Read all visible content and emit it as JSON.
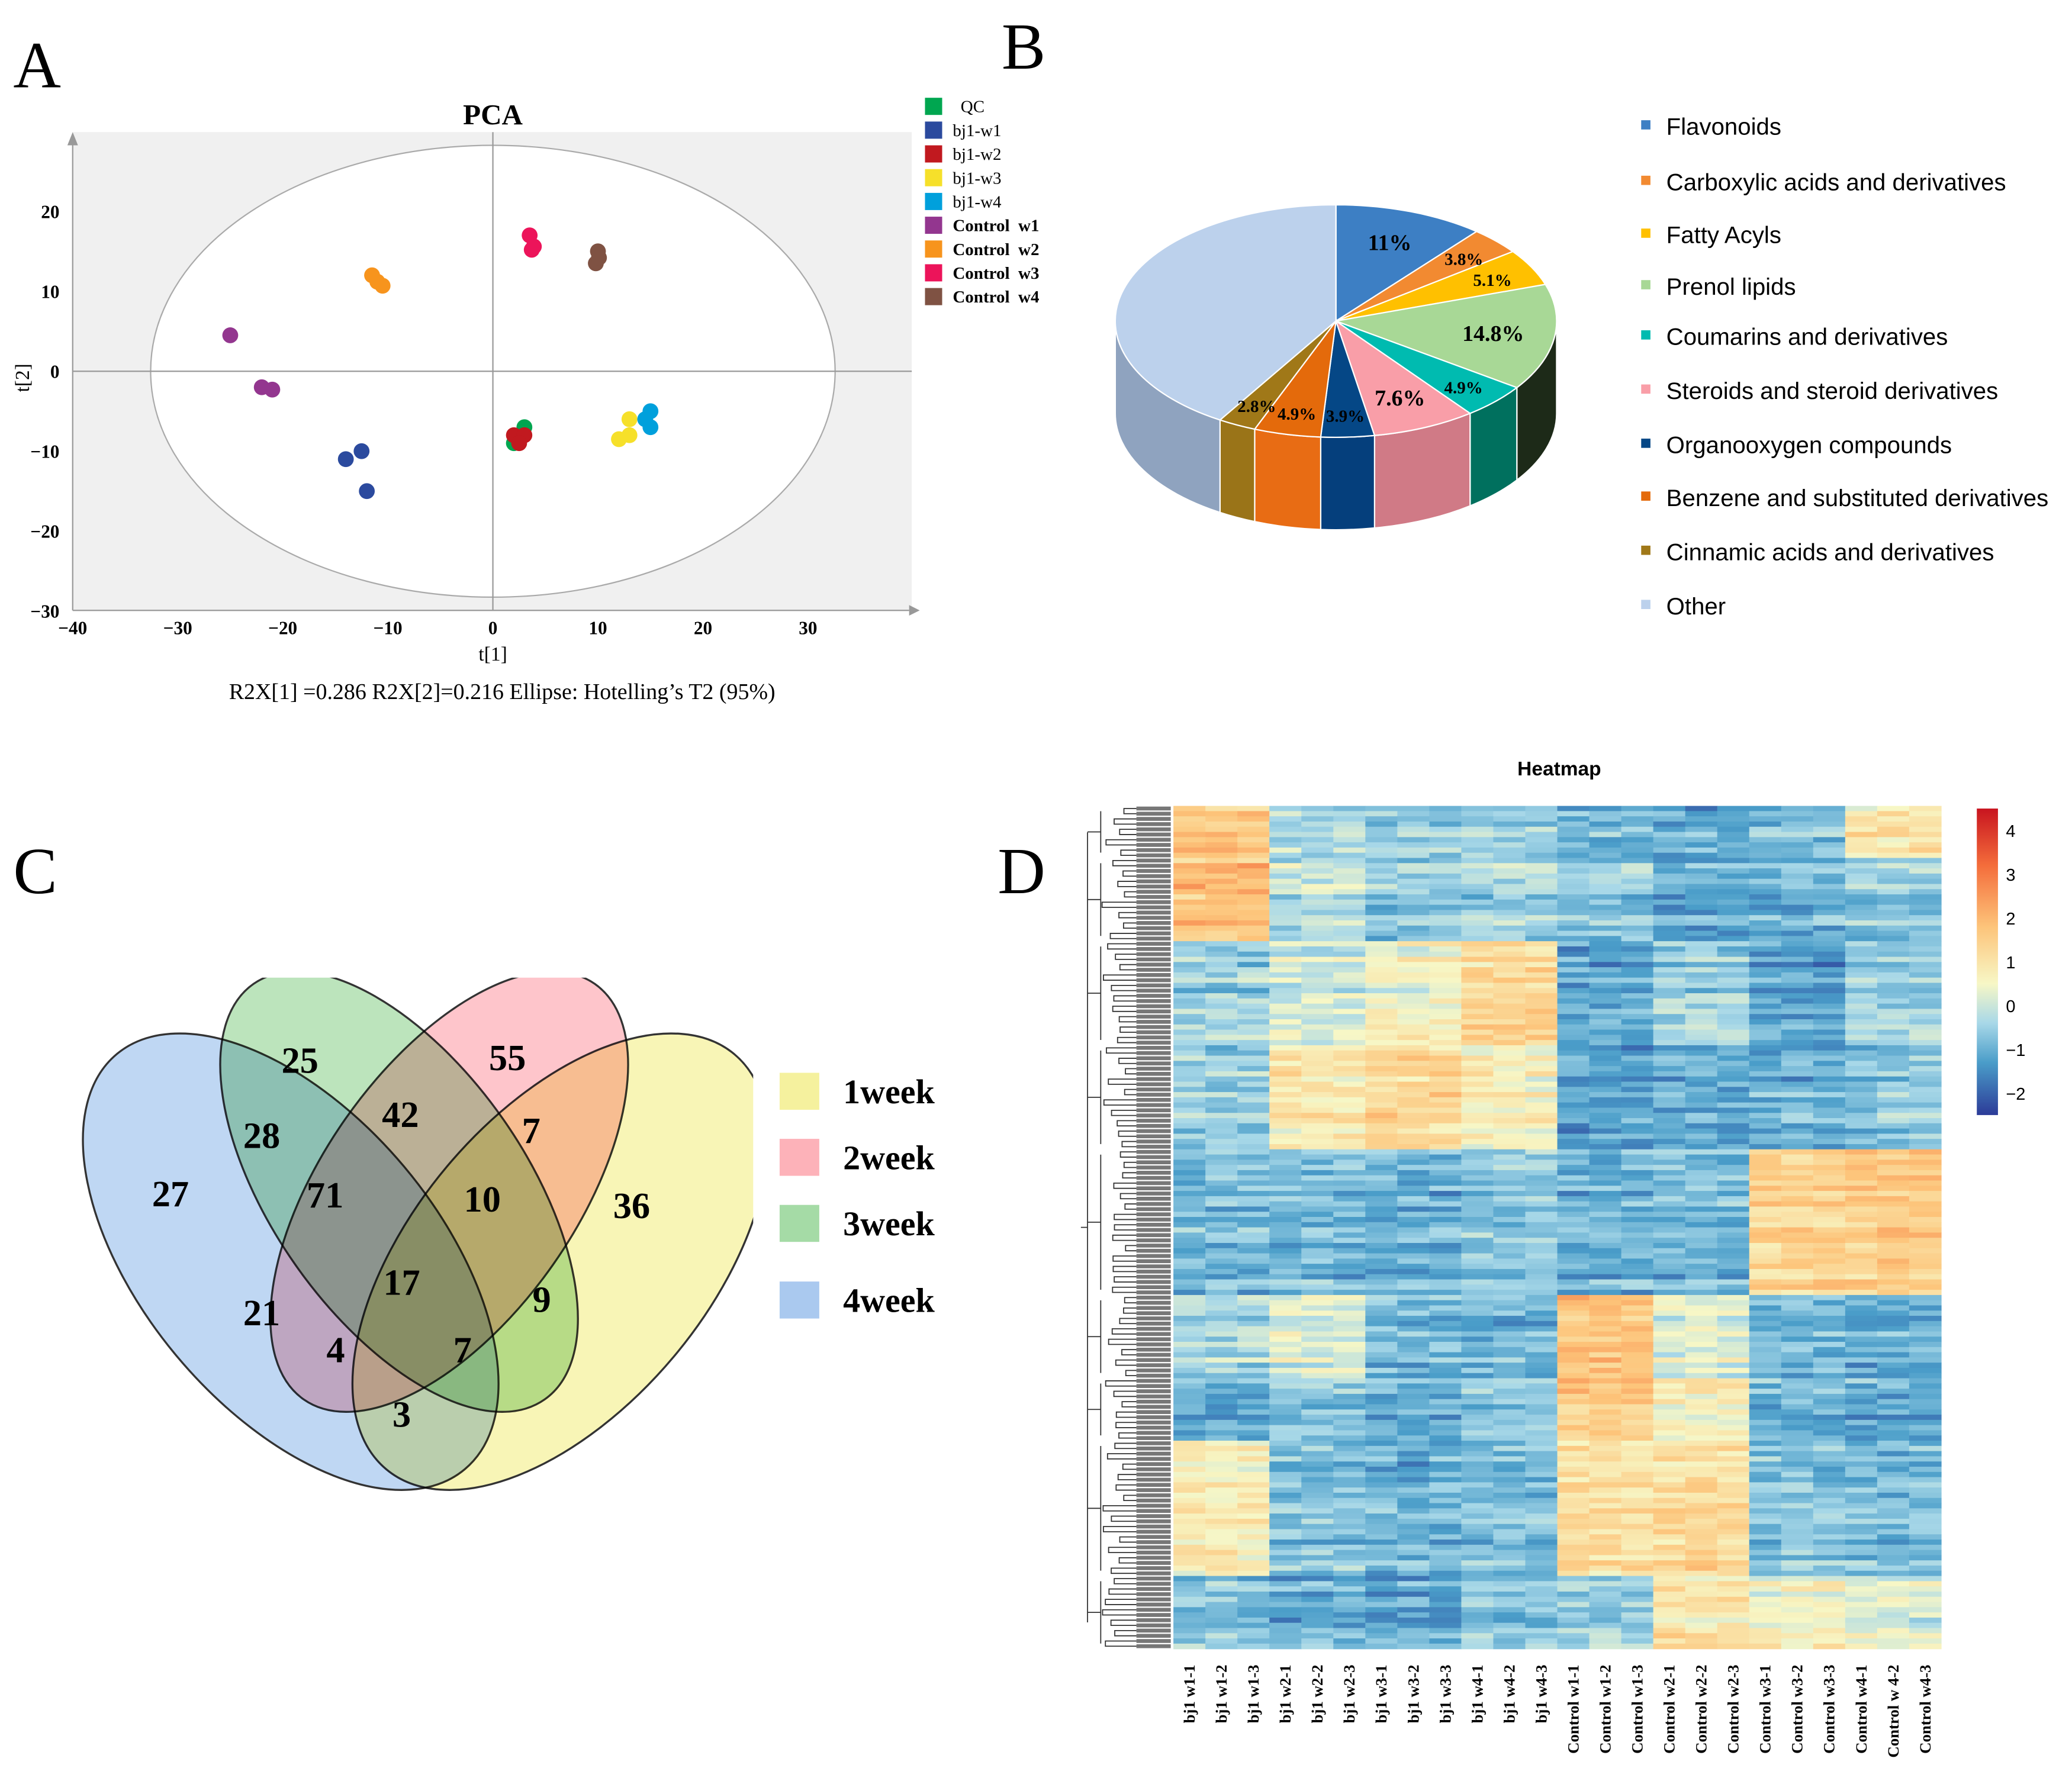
{
  "panels": {
    "a": "A",
    "b": "B",
    "c": "C",
    "d": "D"
  },
  "chart_data": [
    {
      "type": "scatter",
      "title": "PCA",
      "xlabel": "t[1]",
      "ylabel": "t[2]",
      "xlim": [
        -40,
        40
      ],
      "ylim": [
        -30,
        30
      ],
      "xticks": [
        -40,
        -30,
        -20,
        -10,
        0,
        10,
        20,
        30
      ],
      "yticks": [
        20,
        10,
        0,
        -10,
        -20,
        -30
      ],
      "footnote": "R2X[1] =0.286  R2X[2]=0.216 Ellipse: Hotelling’s T2 (95%)",
      "legend_position": "right",
      "series": [
        {
          "name": "QC",
          "color": "#00a650",
          "points": [
            [
              3,
              -7
            ],
            [
              2,
              -9
            ],
            [
              2.5,
              -8.2
            ]
          ]
        },
        {
          "name": "bj1-w1",
          "color": "#2b4a9e",
          "points": [
            [
              -14,
              -11
            ],
            [
              -12.5,
              -10
            ],
            [
              -12,
              -15
            ]
          ]
        },
        {
          "name": "bj1-w2",
          "color": "#c1191f",
          "points": [
            [
              2,
              -8
            ],
            [
              3,
              -8
            ],
            [
              2.5,
              -9
            ]
          ]
        },
        {
          "name": "bj1-w3",
          "color": "#f6e02a",
          "points": [
            [
              13,
              -6
            ],
            [
              12,
              -8.5
            ],
            [
              13,
              -8
            ]
          ]
        },
        {
          "name": "bj1-w4",
          "color": "#00a0dc",
          "points": [
            [
              15,
              -5
            ],
            [
              15,
              -7
            ],
            [
              14.5,
              -6
            ]
          ]
        },
        {
          "name": "Control  w1",
          "color": "#93368f",
          "points": [
            [
              -25,
              4.5
            ],
            [
              -22,
              -2
            ],
            [
              -21,
              -2.3
            ]
          ]
        },
        {
          "name": "Control  w2",
          "color": "#f7941d",
          "points": [
            [
              -11.5,
              12
            ],
            [
              -11,
              11.2
            ],
            [
              -10.5,
              10.7
            ]
          ]
        },
        {
          "name": "Control  w3",
          "color": "#ec145a",
          "points": [
            [
              3.5,
              17
            ],
            [
              3.7,
              15.2
            ],
            [
              3.9,
              15.6
            ]
          ]
        },
        {
          "name": "Control  w4",
          "color": "#7f5243",
          "points": [
            [
              10,
              15
            ],
            [
              9.8,
              13.5
            ],
            [
              10.1,
              14.2
            ]
          ]
        }
      ]
    },
    {
      "type": "pie",
      "legend_position": "right",
      "slices": [
        {
          "name": "Flavonoids",
          "value": 11,
          "label": "11%",
          "color": "#3d7fc4",
          "side": "#2d5f94"
        },
        {
          "name": "Carboxylic acids and derivatives",
          "value": 3.8,
          "label": "3.8%",
          "color": "#f28a31",
          "side": "#c86a20"
        },
        {
          "name": "Fatty Acyls",
          "value": 5.1,
          "label": "5.1%",
          "color": "#ffc000",
          "side": "#c89600"
        },
        {
          "name": "Prenol lipids",
          "value": 14.8,
          "label": "14.8%",
          "color": "#a8d896",
          "side": "#1d2a18"
        },
        {
          "name": "Coumarins and derivatives",
          "value": 4.9,
          "label": "4.9%",
          "color": "#00bbb0",
          "side": "#00705e"
        },
        {
          "name": "Steroids and steroid derivatives",
          "value": 7.6,
          "label": "7.6%",
          "color": "#f99ea8",
          "side": "#d07a86"
        },
        {
          "name": "Organooxygen compounds",
          "value": 3.9,
          "label": "3.9%",
          "color": "#054786",
          "side": "#053f7c"
        },
        {
          "name": "Benzene and substituted derivatives",
          "value": 4.9,
          "label": "4.9%",
          "color": "#e46a0b",
          "side": "#e86c14"
        },
        {
          "name": "Cinnamic acids and derivatives",
          "value": 2.8,
          "label": "2.8%",
          "color": "#a07818",
          "side": "#9a7418"
        },
        {
          "name": "Other",
          "value": 41.2,
          "label": "",
          "color": "#bcd1ec",
          "side": "#8fa3bf"
        }
      ]
    },
    {
      "type": "venn",
      "sets": [
        {
          "name": "1week",
          "color": "#f5f19e"
        },
        {
          "name": "2week",
          "color": "#fdb2b9"
        },
        {
          "name": "3week",
          "color": "#a5dba6"
        },
        {
          "name": "4week",
          "color": "#aac9ef"
        }
      ],
      "regions": [
        {
          "sets": [
            "4week"
          ],
          "value": 27
        },
        {
          "sets": [
            "3week"
          ],
          "value": 25
        },
        {
          "sets": [
            "2week"
          ],
          "value": 55
        },
        {
          "sets": [
            "1week"
          ],
          "value": 36
        },
        {
          "sets": [
            "3week",
            "4week"
          ],
          "value": 28
        },
        {
          "sets": [
            "2week",
            "3week"
          ],
          "value": 42
        },
        {
          "sets": [
            "1week",
            "2week"
          ],
          "value": 7
        },
        {
          "sets": [
            "2week",
            "3week",
            "4week"
          ],
          "value": 71
        },
        {
          "sets": [
            "1week",
            "2week",
            "3week"
          ],
          "value": 10
        },
        {
          "sets": [
            "1week",
            "2week",
            "3week",
            "4week"
          ],
          "value": 17
        },
        {
          "sets": [
            "2week",
            "4week"
          ],
          "value": 21
        },
        {
          "sets": [
            "1week",
            "3week"
          ],
          "value": 9
        },
        {
          "sets": [
            "1week",
            "2week",
            "4week"
          ],
          "value": 4
        },
        {
          "sets": [
            "1week",
            "3week",
            "4week"
          ],
          "value": 7
        },
        {
          "sets": [
            "1week",
            "4week"
          ],
          "value": 3
        }
      ]
    },
    {
      "type": "heatmap",
      "title": "Heatmap",
      "columns": [
        "bj1 w1-1",
        "bj1 w1-2",
        "bj1 w1-3",
        "bj1 w2-1",
        "bj1 w2-2",
        "bj1 w2-3",
        "bj1 w3-1",
        "bj1 w3-2",
        "bj1 w3-3",
        "bj1 w4-1",
        "bj1 w4-2",
        "bj1 w4-3",
        "Control w1-1",
        "Control w1-2",
        "Control w1-3",
        "Control w2-1",
        "Control w2-2",
        "Control w2-3",
        "Control w3-1",
        "Control w3-2",
        "Control w3-3",
        "Control w4-1",
        "Control w 4-2",
        "Control w4-3"
      ],
      "colorbar": {
        "range": [
          -2.5,
          4.5
        ],
        "ticks": [
          4,
          3,
          2,
          1,
          0,
          -1,
          -2
        ],
        "colors": [
          "#2c3b98",
          "#4a9dc9",
          "#a8d8e8",
          "#f7f7c6",
          "#fdc47a",
          "#f46d3b",
          "#c8141f"
        ]
      },
      "row_blocks_note": "",
      "row_blocks": [
        {
          "rows": 10,
          "groups": [
            1.6,
            -0.3,
            -0.6,
            -0.5,
            -0.9,
            -1.1,
            -0.9,
            0.9
          ]
        },
        {
          "rows": 16,
          "groups": [
            1.8,
            -0.2,
            -0.7,
            -0.5,
            -0.6,
            -1.1,
            -1.0,
            -0.6
          ]
        },
        {
          "rows": 20,
          "groups": [
            -0.5,
            0.0,
            0.5,
            1.2,
            -1.2,
            -0.5,
            -1.3,
            -0.6
          ]
        },
        {
          "rows": 20,
          "groups": [
            -0.6,
            0.9,
            1.3,
            0.6,
            -1.2,
            -1.1,
            -1.0,
            -0.7
          ]
        },
        {
          "rows": 28,
          "groups": [
            -0.9,
            -0.9,
            -1.0,
            -0.7,
            -1.0,
            -0.9,
            1.3,
            1.5
          ]
        },
        {
          "rows": 16,
          "groups": [
            -0.3,
            0.2,
            -0.8,
            -0.9,
            1.8,
            0.3,
            -0.8,
            -1.0
          ]
        },
        {
          "rows": 12,
          "groups": [
            -1.0,
            -0.6,
            -0.9,
            -0.6,
            1.6,
            0.8,
            -0.9,
            -1.0
          ]
        },
        {
          "rows": 26,
          "groups": [
            0.7,
            -0.8,
            -1.0,
            -0.9,
            1.0,
            1.2,
            -0.8,
            -0.9
          ]
        },
        {
          "rows": 14,
          "groups": [
            -0.7,
            -1.0,
            -1.1,
            -0.7,
            -0.5,
            1.0,
            0.5,
            0.2
          ]
        }
      ]
    }
  ]
}
